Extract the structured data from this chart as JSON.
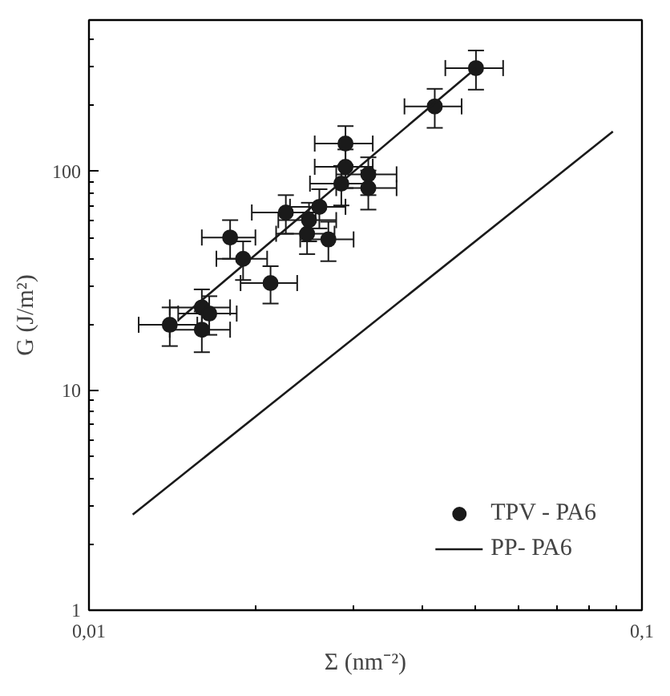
{
  "chart_data": {
    "type": "scatter",
    "xlabel": "Σ (nm⁻²)",
    "ylabel": "G (J/m²)",
    "log": "xy",
    "grid": false,
    "legend": "bottom right",
    "xlim": [
      0.01,
      0.1
    ],
    "ylim": [
      1,
      490
    ],
    "xticks": [
      {
        "value": 0.01,
        "label": "0,01"
      },
      {
        "value": 0.1,
        "label": "0,1"
      }
    ],
    "yticks": [
      1,
      10,
      100
    ],
    "series": [
      {
        "name": "TPV - PA6",
        "marker": "circle",
        "color": "#1a1a1a",
        "x": [
          0.0501,
          0.0422,
          0.0291,
          0.0291,
          0.032,
          0.0286,
          0.032,
          0.0261,
          0.0227,
          0.025,
          0.0248,
          0.0271,
          0.018,
          0.019,
          0.0213,
          0.016,
          0.0165,
          0.014,
          0.016
        ],
        "values": [
          296,
          198,
          134,
          105,
          97,
          88,
          84,
          69,
          65,
          60,
          52,
          49,
          50,
          40,
          31,
          24,
          22.5,
          20,
          19
        ],
        "errors": [
          60,
          40,
          27,
          21,
          19,
          18,
          17,
          14,
          13,
          12,
          10,
          10,
          10,
          8,
          6,
          5,
          4.5,
          4,
          4
        ],
        "xerrors": [
          0.006,
          0.005,
          0.0035,
          0.0035,
          0.004,
          0.0035,
          0.004,
          0.003,
          0.003,
          0.003,
          0.003,
          0.003,
          0.002,
          0.002,
          0.0025,
          0.002,
          0.002,
          0.0017,
          0.002
        ]
      },
      {
        "type": "line",
        "color": "#1a1a1a",
        "x": [
          0.0145,
          0.0501
        ],
        "values": [
          21,
          296
        ]
      },
      {
        "name": "PP- PA6",
        "type": "line",
        "color": "#1a1a1a",
        "x": [
          0.012,
          0.0886
        ],
        "values": [
          2.73,
          152
        ]
      }
    ]
  }
}
